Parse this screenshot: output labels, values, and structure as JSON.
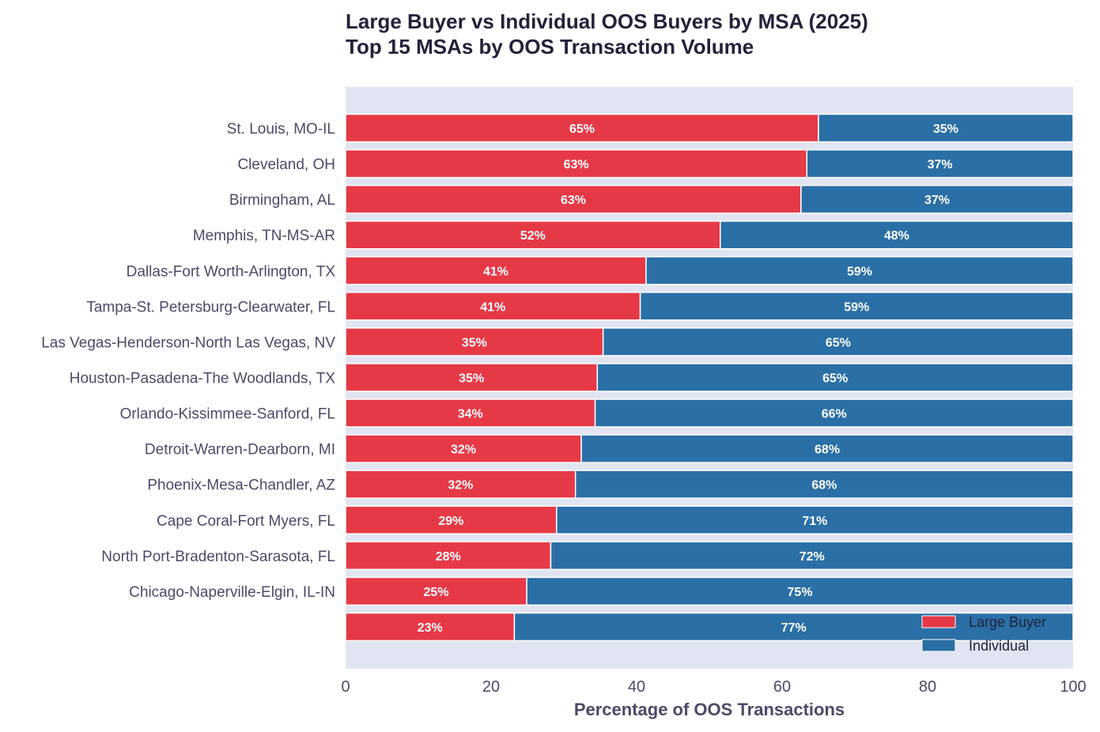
{
  "chart_data": {
    "type": "bar",
    "orientation": "horizontal",
    "stacked": true,
    "title": "Large Buyer vs Individual OOS Buyers by MSA (2025)",
    "subtitle": "Top 15 MSAs by OOS Transaction Volume",
    "xlabel": "Percentage of OOS Transactions",
    "ylabel": "",
    "xlim": [
      0,
      100
    ],
    "xticks": [
      "0",
      "20",
      "40",
      "60",
      "80",
      "100"
    ],
    "grid": false,
    "legend_position": "bottom-right",
    "categories": [
      "St. Louis, MO-IL",
      "Cleveland, OH",
      "Birmingham, AL",
      "Memphis, TN-MS-AR",
      "Dallas-Fort Worth-Arlington, TX",
      "Tampa-St. Petersburg-Clearwater, FL",
      "Las Vegas-Henderson-North Las Vegas, NV",
      "Houston-Pasadena-The Woodlands, TX",
      "Orlando-Kissimmee-Sanford, FL",
      "Detroit-Warren-Dearborn, MI",
      "Phoenix-Mesa-Chandler, AZ",
      "Cape Coral-Fort Myers, FL",
      "North Port-Bradenton-Sarasota, FL",
      "Chicago-Naperville-Elgin, IL-IN",
      ""
    ],
    "series": [
      {
        "name": "Large Buyer",
        "color": "#e63946",
        "values": [
          65.0,
          63.4,
          62.6,
          51.5,
          41.3,
          40.5,
          35.4,
          34.6,
          34.3,
          32.4,
          31.6,
          29.0,
          28.2,
          24.9,
          23.2
        ],
        "labels": [
          "65%",
          "63%",
          "63%",
          "52%",
          "41%",
          "41%",
          "35%",
          "35%",
          "34%",
          "32%",
          "32%",
          "29%",
          "28%",
          "25%",
          "23%"
        ]
      },
      {
        "name": "Individual",
        "color": "#2a6fa6",
        "values": [
          35.0,
          36.6,
          37.4,
          48.5,
          58.7,
          59.5,
          64.6,
          65.4,
          65.7,
          67.6,
          68.4,
          71.0,
          71.8,
          75.1,
          76.8
        ],
        "labels": [
          "35%",
          "37%",
          "37%",
          "48%",
          "59%",
          "59%",
          "65%",
          "65%",
          "66%",
          "68%",
          "68%",
          "71%",
          "72%",
          "75%",
          "77%"
        ]
      }
    ],
    "background": "#e1e5f1"
  }
}
